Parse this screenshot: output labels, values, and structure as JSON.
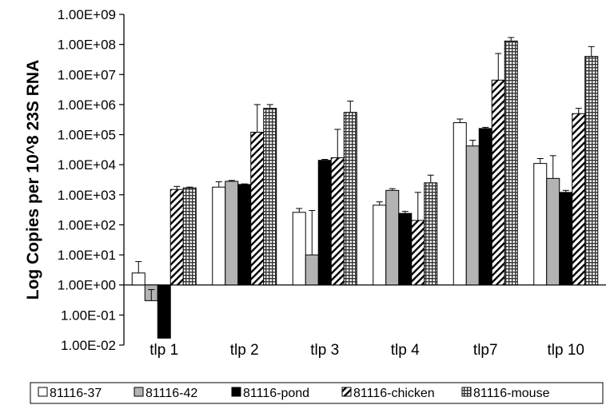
{
  "chart_data": {
    "type": "bar",
    "title": "",
    "xlabel": "",
    "ylabel": "Log Copies per 10^8 23S RNA",
    "y_scale": "log",
    "ylim": [
      0.01,
      1000000000
    ],
    "baseline": 1,
    "y_ticks": [
      "1.00E-02",
      "1.00E-01",
      "1.00E+00",
      "1.00E+01",
      "1.00E+02",
      "1.00E+03",
      "1.00E+04",
      "1.00E+05",
      "1.00E+06",
      "1.00E+07",
      "1.00E+08",
      "1.00E+09"
    ],
    "grid": false,
    "legend": "bottom",
    "categories": [
      "tlp 1",
      "tlp 2",
      "tlp 3",
      "tlp 4",
      "tlp7",
      "tlp 10"
    ],
    "series": [
      {
        "name": "81116-37",
        "fill": "white",
        "values": [
          2.5,
          1800,
          260,
          450,
          250000,
          11000
        ],
        "error_upper": [
          6,
          2700,
          350,
          580,
          330000,
          16000
        ]
      },
      {
        "name": "81116-42",
        "fill": "gray",
        "color": "#b3b3b3",
        "values": [
          0.3,
          2800,
          10,
          1400,
          42000,
          3500
        ],
        "error_upper": [
          0.7,
          3000,
          300,
          1600,
          65000,
          20000
        ]
      },
      {
        "name": "81116-pond",
        "fill": "black",
        "color": "#000000",
        "values": [
          0.017,
          2200,
          14000,
          240,
          160000,
          1200
        ],
        "error_upper": [
          0.017,
          2300,
          15000,
          280,
          175000,
          1400
        ]
      },
      {
        "name": "81116-chicken",
        "fill": "diagonal-hatch",
        "values": [
          1500,
          120000,
          17000,
          140,
          6500000,
          500000
        ],
        "error_upper": [
          1900,
          1000000,
          150000,
          1200,
          50000000,
          750000
        ]
      },
      {
        "name": "81116-mouse",
        "fill": "crosshatch",
        "values": [
          1700,
          750000,
          550000,
          2500,
          130000000,
          40000000
        ],
        "error_upper": [
          1800,
          1000000,
          1300000,
          4500,
          170000000,
          85000000
        ]
      }
    ]
  }
}
